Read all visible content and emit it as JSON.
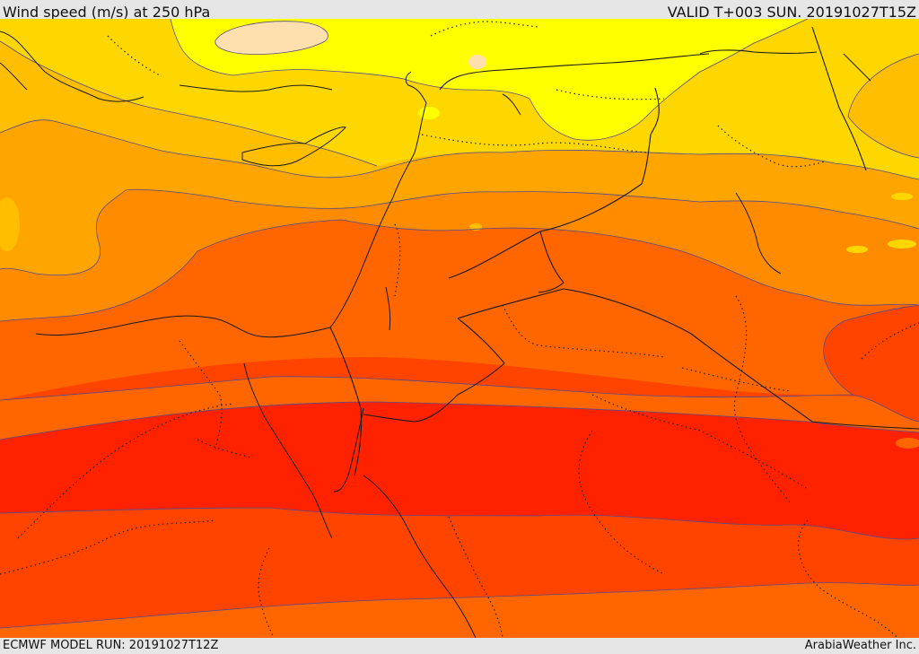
{
  "header": {
    "title": "Wind speed (m/s) at 250 hPa",
    "valid": "VALID T+003 SUN. 20191027T15Z"
  },
  "footer": {
    "model_run": "ECMWF MODEL RUN: 20191027T12Z",
    "credit": "ArabiaWeather Inc."
  },
  "colors": {
    "band_lightest": "#fde0ae",
    "band_yellow": "#ffff00",
    "band_gold": "#ffd700",
    "band_amber": "#ffbf00",
    "band_orange_light": "#ffa500",
    "band_orange": "#ff8c00",
    "band_orange_dark": "#ff6600",
    "band_red_orange": "#ff4400",
    "band_red": "#ff2200"
  }
}
